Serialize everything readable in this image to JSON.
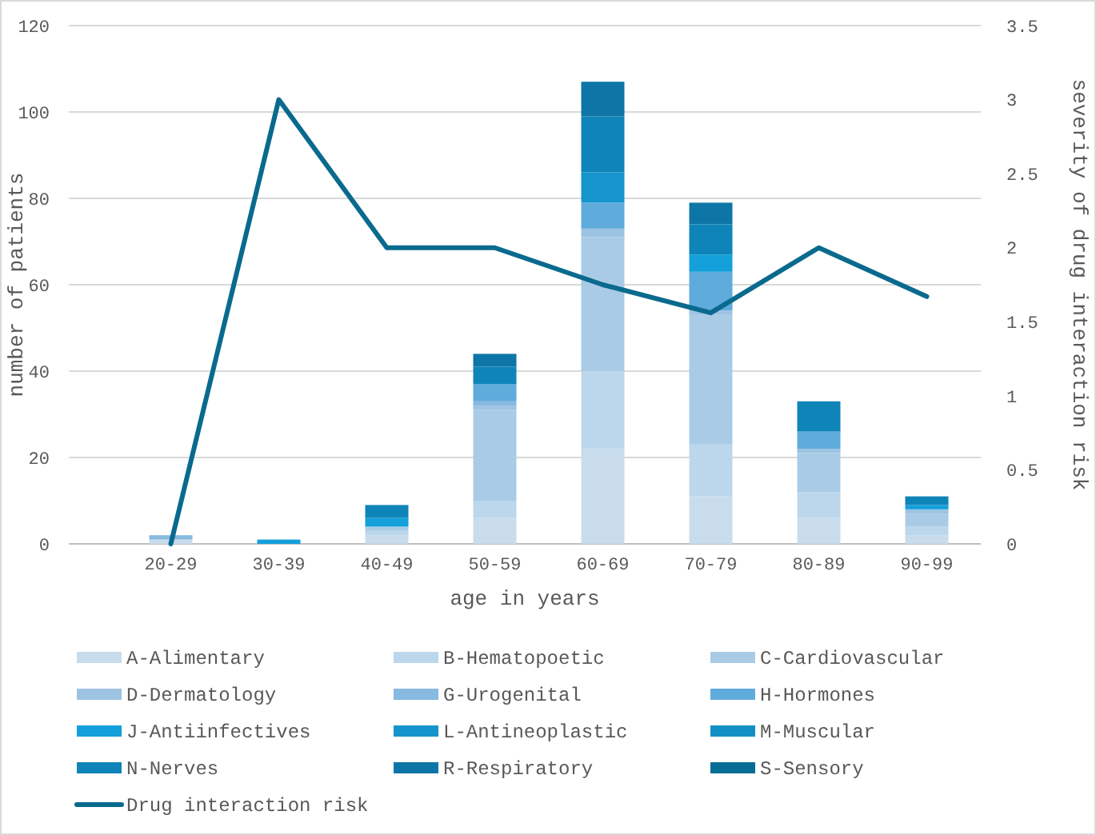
{
  "chart_data": {
    "type": "bar",
    "stacked": true,
    "xlabel": "age in years",
    "ylabel": "number of patients",
    "y2label": "severity of drug interaction risk",
    "categories": [
      "20-29",
      "30-39",
      "40-49",
      "50-59",
      "60-69",
      "70-79",
      "80-89",
      "90-99"
    ],
    "series": [
      {
        "name": "A-Alimentary",
        "color": "#c9dcec",
        "values": [
          1,
          0,
          2,
          6,
          22,
          11,
          6,
          2
        ]
      },
      {
        "name": "B-Hematopoetic",
        "color": "#bcd7ec",
        "values": [
          0,
          0,
          1,
          4,
          18,
          12,
          6,
          2
        ]
      },
      {
        "name": "C-Cardiovascular",
        "color": "#a9cbe6",
        "values": [
          0,
          0,
          1,
          21,
          31,
          30,
          9,
          3
        ]
      },
      {
        "name": "D-Dermatology",
        "color": "#9dc3e3",
        "values": [
          0,
          0,
          0,
          1,
          2,
          1,
          1,
          1
        ]
      },
      {
        "name": "G-Urogenital",
        "color": "#88b9df",
        "values": [
          1,
          0,
          0,
          1,
          0,
          0,
          0,
          0
        ]
      },
      {
        "name": "H-Hormones",
        "color": "#5fabdb",
        "values": [
          0,
          0,
          0,
          4,
          6,
          9,
          4,
          0
        ]
      },
      {
        "name": "J-Antiinfectives",
        "color": "#13a0db",
        "values": [
          0,
          1,
          2,
          0,
          0,
          4,
          0,
          1
        ]
      },
      {
        "name": "L-Antineoplastic",
        "color": "#1595cc",
        "values": [
          0,
          0,
          0,
          0,
          7,
          0,
          0,
          0
        ]
      },
      {
        "name": "M-Muscular",
        "color": "#1290c5",
        "values": [
          0,
          0,
          0,
          0,
          0,
          0,
          0,
          0
        ]
      },
      {
        "name": "N-Nerves",
        "color": "#0f84b8",
        "values": [
          0,
          0,
          3,
          4,
          13,
          7,
          7,
          2
        ]
      },
      {
        "name": "R-Respiratory",
        "color": "#0d76a6",
        "values": [
          0,
          0,
          0,
          3,
          8,
          5,
          0,
          0
        ]
      },
      {
        "name": "S-Sensory",
        "color": "#086d96",
        "values": [
          0,
          0,
          0,
          0,
          0,
          0,
          0,
          0
        ]
      },
      {
        "name": "Drug interaction risk",
        "color": "#0a6a8e",
        "type": "line",
        "axis": "y2",
        "values": [
          0,
          3,
          2,
          2,
          1.75,
          1.56,
          2,
          1.67
        ]
      }
    ],
    "ylim": [
      0,
      120
    ],
    "yticks": [
      0,
      20,
      40,
      60,
      80,
      100,
      120
    ],
    "y2lim": [
      0,
      3.5
    ],
    "y2ticks": [
      0,
      0.5,
      1,
      1.5,
      2,
      2.5,
      3,
      3.5
    ],
    "grid": "y",
    "legend": "bottom",
    "marker": "none",
    "line_style": "solid"
  }
}
